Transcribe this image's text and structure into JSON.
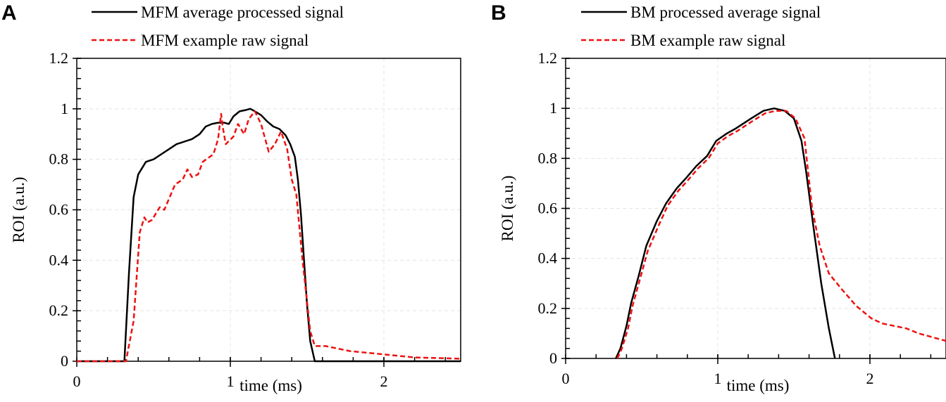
{
  "chart_data": [
    {
      "type": "line",
      "panel_label": "A",
      "xlabel": "time (ms)",
      "ylabel": "ROI (a.u.)",
      "xlim": [
        0,
        2.5
      ],
      "ylim": [
        0,
        1.2
      ],
      "xticks": [
        "0",
        "1",
        "2"
      ],
      "yticks": [
        "0",
        "0.2",
        "0.4",
        "0.6",
        "0.8",
        "1",
        "1.2"
      ],
      "grid": true,
      "legend_position": "top",
      "series": [
        {
          "name": "MFM average processed signal",
          "color": "#000000",
          "style": "solid",
          "x": [
            0,
            0.31,
            0.34,
            0.37,
            0.4,
            0.45,
            0.5,
            0.55,
            0.6,
            0.65,
            0.7,
            0.75,
            0.8,
            0.84,
            0.88,
            0.92,
            0.96,
            0.99,
            1.02,
            1.06,
            1.1,
            1.13,
            1.16,
            1.2,
            1.24,
            1.28,
            1.32,
            1.36,
            1.39,
            1.42,
            1.44,
            1.46,
            1.48,
            1.5,
            1.52,
            1.55,
            2.5
          ],
          "y": [
            0,
            0,
            0.35,
            0.65,
            0.74,
            0.79,
            0.8,
            0.82,
            0.84,
            0.86,
            0.87,
            0.88,
            0.9,
            0.93,
            0.94,
            0.945,
            0.945,
            0.94,
            0.97,
            0.99,
            0.995,
            1.0,
            0.99,
            0.975,
            0.95,
            0.93,
            0.92,
            0.895,
            0.86,
            0.81,
            0.72,
            0.58,
            0.4,
            0.22,
            0.08,
            0,
            0
          ]
        },
        {
          "name": "MFM example raw signal",
          "color": "#ee1111",
          "style": "dashed",
          "x": [
            0,
            0.32,
            0.37,
            0.41,
            0.44,
            0.46,
            0.49,
            0.54,
            0.57,
            0.64,
            0.69,
            0.72,
            0.75,
            0.79,
            0.82,
            0.89,
            0.92,
            0.94,
            0.95,
            0.97,
            1.02,
            1.05,
            1.09,
            1.12,
            1.16,
            1.2,
            1.25,
            1.29,
            1.33,
            1.37,
            1.4,
            1.43,
            1.47,
            1.52,
            1.55,
            1.62,
            1.78,
            1.95,
            2.2,
            2.5
          ],
          "y": [
            0,
            0,
            0.16,
            0.51,
            0.57,
            0.55,
            0.56,
            0.61,
            0.6,
            0.7,
            0.72,
            0.76,
            0.73,
            0.74,
            0.79,
            0.82,
            0.88,
            0.98,
            0.93,
            0.86,
            0.89,
            0.94,
            0.9,
            0.96,
            0.99,
            0.94,
            0.83,
            0.86,
            0.91,
            0.84,
            0.72,
            0.66,
            0.4,
            0.12,
            0.06,
            0.06,
            0.04,
            0.03,
            0.015,
            0.01
          ]
        }
      ]
    },
    {
      "type": "line",
      "panel_label": "B",
      "xlabel": "time (ms)",
      "ylabel": "ROI (a.u.)",
      "xlim": [
        0,
        2.5
      ],
      "ylim": [
        0,
        1.2
      ],
      "xticks": [
        "0",
        "1",
        "2"
      ],
      "yticks": [
        "0",
        "0.2",
        "0.4",
        "0.6",
        "0.8",
        "1",
        "1.2"
      ],
      "grid": true,
      "legend_position": "top",
      "series": [
        {
          "name": "BM processed average signal",
          "color": "#000000",
          "style": "solid",
          "x": [
            0.33,
            0.36,
            0.4,
            0.43,
            0.48,
            0.53,
            0.6,
            0.66,
            0.73,
            0.79,
            0.86,
            0.93,
            0.99,
            1.06,
            1.12,
            1.22,
            1.3,
            1.37,
            1.44,
            1.5,
            1.55,
            1.58,
            1.63,
            1.68,
            1.73,
            1.77
          ],
          "y": [
            0,
            0.04,
            0.13,
            0.22,
            0.33,
            0.45,
            0.55,
            0.62,
            0.68,
            0.72,
            0.77,
            0.81,
            0.87,
            0.9,
            0.92,
            0.96,
            0.99,
            1.0,
            0.99,
            0.96,
            0.87,
            0.75,
            0.52,
            0.3,
            0.12,
            0
          ]
        },
        {
          "name": "BM example raw signal",
          "color": "#ee1111",
          "style": "dashed",
          "x": [
            0.34,
            0.37,
            0.41,
            0.44,
            0.49,
            0.54,
            0.61,
            0.67,
            0.74,
            0.8,
            0.87,
            0.94,
            1.0,
            1.07,
            1.13,
            1.23,
            1.31,
            1.38,
            1.45,
            1.51,
            1.57,
            1.62,
            1.67,
            1.73,
            1.81,
            1.91,
            2.01,
            2.08,
            2.24,
            2.32,
            2.5
          ],
          "y": [
            0,
            0.04,
            0.12,
            0.21,
            0.32,
            0.43,
            0.53,
            0.61,
            0.67,
            0.71,
            0.76,
            0.8,
            0.86,
            0.89,
            0.91,
            0.95,
            0.98,
            0.99,
            0.99,
            0.96,
            0.88,
            0.6,
            0.45,
            0.34,
            0.28,
            0.21,
            0.16,
            0.14,
            0.12,
            0.1,
            0.07
          ]
        }
      ]
    }
  ]
}
